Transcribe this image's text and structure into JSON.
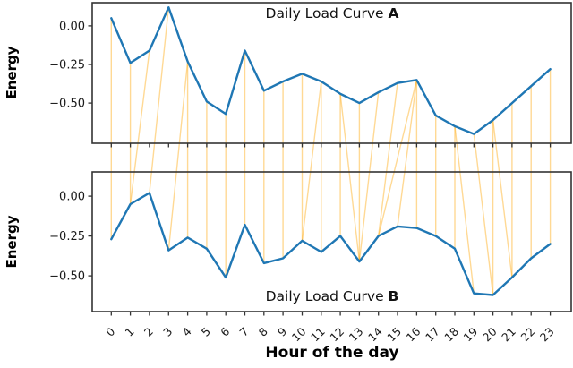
{
  "figure": {
    "xlabel": "Hour of the day",
    "ylabel": "Energy",
    "xticks": [
      "0",
      "1",
      "2",
      "3",
      "4",
      "5",
      "6",
      "7",
      "8",
      "9",
      "10",
      "11",
      "12",
      "13",
      "14",
      "15",
      "16",
      "17",
      "18",
      "19",
      "20",
      "21",
      "22",
      "23"
    ],
    "colors": {
      "curve": "#1f77b4",
      "alignment": "#ffa500",
      "frame": "#333333",
      "tick_text": "#1a1a1a"
    }
  },
  "chart_data": [
    {
      "type": "line",
      "title": "Daily Load Curve A",
      "title_prefix": "Daily Load Curve ",
      "title_letter": "A",
      "xlabel": "Hour of the day",
      "ylabel": "Energy",
      "x": [
        0,
        1,
        2,
        3,
        4,
        5,
        6,
        7,
        8,
        9,
        10,
        11,
        12,
        13,
        14,
        15,
        16,
        17,
        18,
        19,
        20,
        21,
        22,
        23
      ],
      "values": [
        0.05,
        -0.24,
        -0.16,
        0.12,
        -0.23,
        -0.49,
        -0.57,
        -0.16,
        -0.42,
        -0.36,
        -0.31,
        -0.36,
        -0.44,
        -0.5,
        -0.43,
        -0.37,
        -0.35,
        -0.58,
        -0.65,
        -0.7,
        -0.61,
        -0.5,
        -0.39,
        -0.28
      ],
      "ylim": [
        -0.76,
        0.15
      ],
      "xlim": [
        -1.0,
        24.1
      ],
      "yticks": [
        {
          "value": 0.0,
          "label": "0.00"
        },
        {
          "value": -0.25,
          "label": "−0.25"
        },
        {
          "value": -0.5,
          "label": "−0.50"
        }
      ],
      "grid": false,
      "legend": "none"
    },
    {
      "type": "line",
      "title": "Daily Load Curve B",
      "title_prefix": "Daily Load Curve ",
      "title_letter": "B",
      "xlabel": "Hour of the day",
      "ylabel": "Energy",
      "x": [
        0,
        1,
        2,
        3,
        4,
        5,
        6,
        7,
        8,
        9,
        10,
        11,
        12,
        13,
        14,
        15,
        16,
        17,
        18,
        19,
        20,
        21,
        22,
        23
      ],
      "values": [
        -0.27,
        -0.05,
        0.02,
        -0.34,
        -0.26,
        -0.33,
        -0.51,
        -0.18,
        -0.42,
        -0.39,
        -0.28,
        -0.35,
        -0.25,
        -0.41,
        -0.25,
        -0.19,
        -0.2,
        -0.25,
        -0.33,
        -0.61,
        -0.62,
        -0.51,
        -0.39,
        -0.3
      ],
      "ylim": [
        -0.724,
        0.152
      ],
      "xlim": [
        -1.0,
        24.1
      ],
      "yticks": [
        {
          "value": 0.0,
          "label": "0.00"
        },
        {
          "value": -0.25,
          "label": "−0.25"
        },
        {
          "value": -0.5,
          "label": "−0.50"
        }
      ],
      "grid": false,
      "legend": "none"
    }
  ],
  "alignment": {
    "description": "orange warping lines connecting matched hours of curve A (top) to curve B (bottom)",
    "pairs": [
      [
        0,
        0
      ],
      [
        1,
        1
      ],
      [
        2,
        1
      ],
      [
        3,
        2
      ],
      [
        4,
        3
      ],
      [
        4,
        4
      ],
      [
        5,
        5
      ],
      [
        6,
        6
      ],
      [
        7,
        7
      ],
      [
        8,
        8
      ],
      [
        9,
        9
      ],
      [
        10,
        10
      ],
      [
        11,
        10
      ],
      [
        11,
        11
      ],
      [
        12,
        12
      ],
      [
        12,
        13
      ],
      [
        13,
        13
      ],
      [
        14,
        13
      ],
      [
        15,
        14
      ],
      [
        16,
        14
      ],
      [
        16,
        15
      ],
      [
        16,
        16
      ],
      [
        17,
        17
      ],
      [
        18,
        18
      ],
      [
        18,
        19
      ],
      [
        19,
        20
      ],
      [
        20,
        20
      ],
      [
        20,
        21
      ],
      [
        21,
        21
      ],
      [
        22,
        22
      ],
      [
        23,
        23
      ]
    ]
  }
}
